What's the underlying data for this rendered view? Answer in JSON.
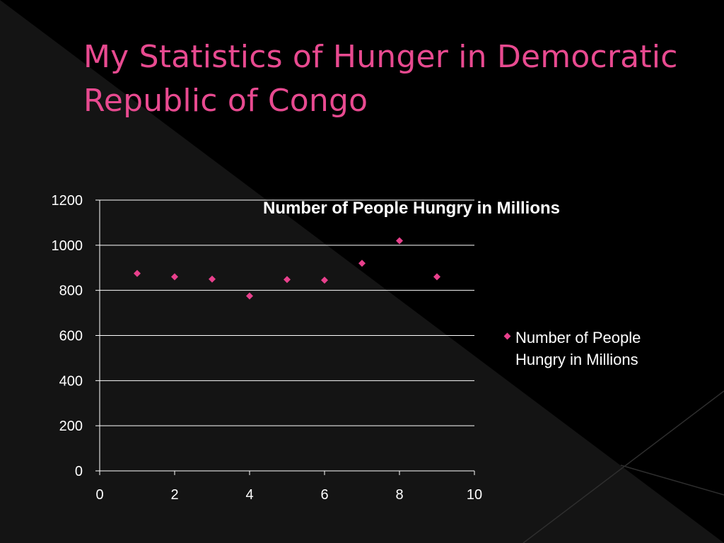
{
  "slide": {
    "title": "My Statistics of Hunger in Democratic Republic of Congo"
  },
  "colors": {
    "background": "#000000",
    "title": "#e84a90",
    "marker": "#e8408c",
    "gridline": "#ffffff",
    "text": "#ffffff"
  },
  "chart_data": {
    "type": "scatter",
    "title": "Number of People Hungry in Millions",
    "xlabel": "",
    "ylabel": "",
    "xlim": [
      0,
      10
    ],
    "ylim": [
      0,
      1200
    ],
    "x_ticks": [
      0,
      2,
      4,
      6,
      8,
      10
    ],
    "y_ticks": [
      0,
      200,
      400,
      600,
      800,
      1000,
      1200
    ],
    "grid": "horizontal",
    "legend_position": "right",
    "series": [
      {
        "name": "Number of People Hungry in Millions",
        "marker": "diamond",
        "points": [
          {
            "x": 1,
            "y": 875
          },
          {
            "x": 2,
            "y": 860
          },
          {
            "x": 3,
            "y": 850
          },
          {
            "x": 4,
            "y": 775
          },
          {
            "x": 5,
            "y": 848
          },
          {
            "x": 6,
            "y": 845
          },
          {
            "x": 7,
            "y": 920
          },
          {
            "x": 8,
            "y": 1020
          },
          {
            "x": 9,
            "y": 860
          }
        ]
      }
    ]
  }
}
